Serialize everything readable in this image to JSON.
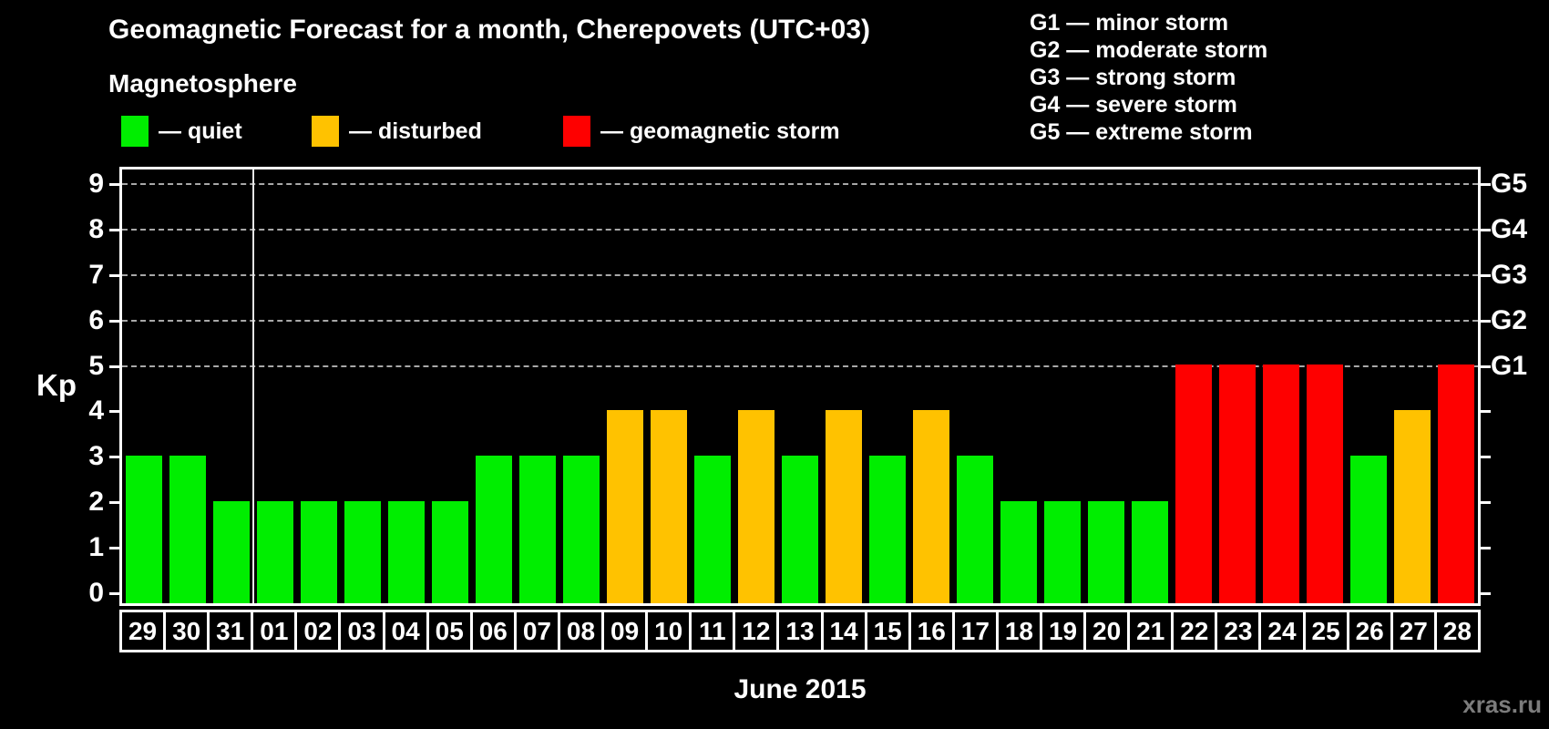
{
  "legend": {
    "heading": "Magnetosphere",
    "items": [
      {
        "name": "quiet",
        "label": "— quiet",
        "color": "#00ee00"
      },
      {
        "name": "disturbed",
        "label": "— disturbed",
        "color": "#ffc200"
      },
      {
        "name": "storm",
        "label": "— geomagnetic storm",
        "color": "#fe0000"
      }
    ]
  },
  "storm_scale": [
    "G1 — minor storm",
    "G2 — moderate storm",
    "G3 — strong storm",
    "G4 — severe storm",
    "G5 — extreme storm"
  ],
  "watermark": "xras.ru",
  "colors": {
    "background": "#000000",
    "axis": "#ffffff",
    "grid": "#a8a8a8",
    "text": "#ffffff",
    "watermark": "#7c7c7c",
    "month_separator": "#e6e6e6"
  },
  "chart_data": {
    "type": "bar",
    "title": "Geomagnetic Forecast for a month, Cherepovets (UTC+03)",
    "xlabel": "June 2015",
    "ylabel": "Kp",
    "ylim": [
      0,
      9.5
    ],
    "y_ticks": [
      0,
      1,
      2,
      3,
      4,
      5,
      6,
      7,
      8,
      9
    ],
    "gridlines_at_kp": [
      5,
      6,
      7,
      8,
      9
    ],
    "right_axis_labels": {
      "5": "G1",
      "6": "G2",
      "7": "G3",
      "8": "G4",
      "9": "G5"
    },
    "grid": "dashed horizontal lines only at Kp 5-9",
    "legend_position": "top-left",
    "categories": [
      "29",
      "30",
      "31",
      "01",
      "02",
      "03",
      "04",
      "05",
      "06",
      "07",
      "08",
      "09",
      "10",
      "11",
      "12",
      "13",
      "14",
      "15",
      "16",
      "17",
      "18",
      "19",
      "20",
      "21",
      "22",
      "23",
      "24",
      "25",
      "26",
      "27",
      "28"
    ],
    "values": [
      3,
      3,
      2,
      2,
      2,
      2,
      2,
      2,
      3,
      3,
      3,
      4,
      4,
      3,
      4,
      3,
      4,
      3,
      4,
      3,
      2,
      2,
      2,
      2,
      5,
      5,
      5,
      5,
      3,
      4,
      5
    ],
    "month_separator_after_category": "31",
    "color_rules": {
      "quiet_max_kp": 3,
      "disturbed_max_kp": 4
    }
  }
}
